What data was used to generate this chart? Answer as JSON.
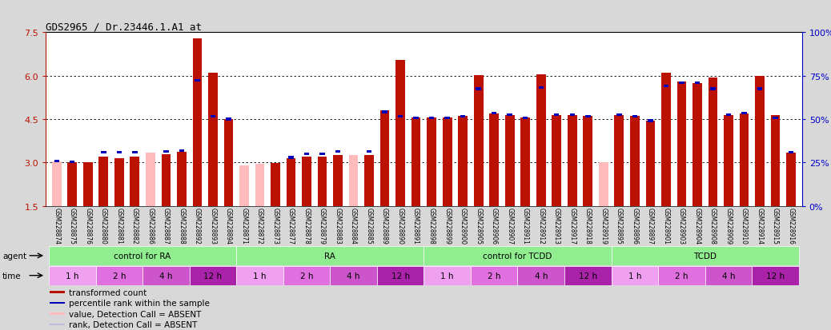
{
  "title": "GDS2965 / Dr.23446.1.A1_at",
  "samples": [
    "GSM228874",
    "GSM228875",
    "GSM228876",
    "GSM228880",
    "GSM228881",
    "GSM228882",
    "GSM228886",
    "GSM228887",
    "GSM228888",
    "GSM228892",
    "GSM228893",
    "GSM228894",
    "GSM228871",
    "GSM228872",
    "GSM228873",
    "GSM228877",
    "GSM228878",
    "GSM228879",
    "GSM228883",
    "GSM228884",
    "GSM228885",
    "GSM228889",
    "GSM228890",
    "GSM228891",
    "GSM228898",
    "GSM228899",
    "GSM228900",
    "GSM228905",
    "GSM228906",
    "GSM228907",
    "GSM228911",
    "GSM228912",
    "GSM228913",
    "GSM228917",
    "GSM228918",
    "GSM228919",
    "GSM228895",
    "GSM228896",
    "GSM228897",
    "GSM228901",
    "GSM228903",
    "GSM228904",
    "GSM228908",
    "GSM228909",
    "GSM228910",
    "GSM228914",
    "GSM228915",
    "GSM228916"
  ],
  "red_values": [
    3.05,
    3.02,
    3.0,
    3.2,
    3.15,
    3.2,
    3.35,
    3.28,
    3.38,
    7.3,
    6.1,
    4.5,
    2.9,
    2.95,
    2.98,
    3.15,
    3.2,
    3.2,
    3.25,
    3.25,
    3.25,
    4.8,
    6.55,
    4.55,
    4.55,
    4.55,
    4.6,
    6.02,
    4.7,
    4.65,
    4.55,
    6.05,
    4.65,
    4.65,
    4.6,
    3.0,
    4.65,
    4.6,
    4.45,
    6.1,
    5.8,
    5.75,
    5.95,
    4.65,
    4.7,
    6.0,
    4.65,
    3.35
  ],
  "blue_values": [
    3.05,
    3.02,
    null,
    3.35,
    3.35,
    3.35,
    null,
    3.38,
    3.42,
    5.85,
    4.6,
    4.5,
    null,
    null,
    null,
    3.18,
    3.3,
    3.3,
    3.38,
    null,
    3.38,
    4.75,
    4.6,
    4.55,
    4.55,
    4.55,
    4.6,
    5.55,
    4.7,
    4.65,
    4.55,
    5.6,
    4.65,
    4.65,
    4.6,
    null,
    4.65,
    4.6,
    4.45,
    5.65,
    5.75,
    5.75,
    5.55,
    4.65,
    4.7,
    5.55,
    4.55,
    3.35
  ],
  "is_absent_red": [
    true,
    false,
    false,
    false,
    false,
    false,
    true,
    false,
    false,
    false,
    false,
    false,
    true,
    true,
    false,
    false,
    false,
    false,
    false,
    true,
    false,
    false,
    false,
    false,
    false,
    false,
    false,
    false,
    false,
    false,
    false,
    false,
    false,
    false,
    false,
    true,
    false,
    false,
    false,
    false,
    false,
    false,
    false,
    false,
    false,
    false,
    false,
    false
  ],
  "is_absent_blue": [
    false,
    false,
    true,
    false,
    false,
    false,
    true,
    false,
    false,
    false,
    false,
    false,
    true,
    true,
    true,
    false,
    false,
    false,
    false,
    true,
    false,
    false,
    false,
    false,
    false,
    false,
    false,
    false,
    false,
    false,
    false,
    false,
    false,
    false,
    false,
    true,
    false,
    false,
    false,
    false,
    false,
    false,
    false,
    false,
    false,
    false,
    false,
    false
  ],
  "ylim": [
    1.5,
    7.5
  ],
  "yticks": [
    1.5,
    3.0,
    4.5,
    6.0,
    7.5
  ],
  "right_yticks": [
    0,
    25,
    50,
    75,
    100
  ],
  "red_color": "#BB1100",
  "absent_red_color": "#FFBBBB",
  "blue_color": "#0000BB",
  "absent_blue_color": "#BBBBDD",
  "background_color": "#D8D8D8",
  "plot_bg_color": "#FFFFFF",
  "bar_width": 0.6,
  "blue_marker_size": 0.09,
  "agent_data": [
    [
      "control for RA",
      0,
      12
    ],
    [
      "RA",
      12,
      24
    ],
    [
      "control for TCDD",
      24,
      36
    ],
    [
      "TCDD",
      36,
      48
    ]
  ],
  "agent_color": "#90EE90",
  "time_data": [
    [
      "1 h",
      0,
      3,
      0
    ],
    [
      "2 h",
      3,
      6,
      1
    ],
    [
      "4 h",
      6,
      9,
      2
    ],
    [
      "12 h",
      9,
      12,
      3
    ],
    [
      "1 h",
      12,
      15,
      0
    ],
    [
      "2 h",
      15,
      18,
      1
    ],
    [
      "4 h",
      18,
      21,
      2
    ],
    [
      "12 h",
      21,
      24,
      3
    ],
    [
      "1 h",
      24,
      27,
      0
    ],
    [
      "2 h",
      27,
      30,
      1
    ],
    [
      "4 h",
      30,
      33,
      2
    ],
    [
      "12 h",
      33,
      36,
      3
    ],
    [
      "1 h",
      36,
      39,
      0
    ],
    [
      "2 h",
      39,
      42,
      1
    ],
    [
      "4 h",
      42,
      45,
      2
    ],
    [
      "12 h",
      45,
      48,
      3
    ]
  ],
  "time_colors": [
    "#F0A0F0",
    "#E070E0",
    "#CC55CC",
    "#AA22AA"
  ],
  "legend_items": [
    [
      "#BB1100",
      "transformed count"
    ],
    [
      "#0000BB",
      "percentile rank within the sample"
    ],
    [
      "#FFBBBB",
      "value, Detection Call = ABSENT"
    ],
    [
      "#BBBBDD",
      "rank, Detection Call = ABSENT"
    ]
  ]
}
